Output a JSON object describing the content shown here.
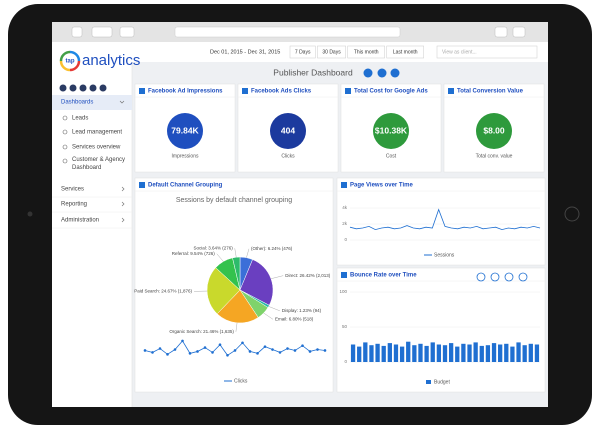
{
  "toolbar": {
    "date_range": "Dec 01, 2015 - Dec 31, 2015",
    "ranges": [
      "7 Days",
      "30 Days",
      "This month",
      "Last month"
    ],
    "search_placeholder": "View as client..."
  },
  "sidebar": {
    "logo_badge": "tap",
    "logo": "analytics",
    "nav": [
      "Dashboards",
      "Leads",
      "Lead management",
      "Services overview",
      "Customer & Agency Dashboard",
      "Services",
      "Reporting",
      "Administration"
    ]
  },
  "page_title": "Publisher Dashboard",
  "kpis": [
    {
      "title": "Facebook Ad Impressions",
      "value": "79.84K",
      "caption": "Impressions",
      "color": "#1f4fbf"
    },
    {
      "title": "Facebook Ads Clicks",
      "value": "404",
      "caption": "Clicks",
      "color": "#1c3a9e"
    },
    {
      "title": "Total Cost for Google Ads",
      "value": "$10.38K",
      "caption": "Cost",
      "color": "#2e9a3c"
    },
    {
      "title": "Total Conversion Value",
      "value": "$8.00",
      "caption": "Total conv. value",
      "color": "#2e9a3c"
    }
  ],
  "channel_widget": {
    "title": "Default Channel Grouping",
    "subtitle": "Sessions by default channel grouping",
    "pie": {
      "type": "pie",
      "categories": [
        "(Other)",
        "Direct",
        "Display",
        "Email",
        "Organic Search",
        "Paid Search",
        "Referral",
        "Social"
      ],
      "values": [
        6.24,
        26.42,
        1.23,
        6.8,
        21.46,
        24.67,
        9.54,
        3.64
      ],
      "value_labels": [
        "(Other): 6.24% (476)",
        "Direct: 26.42% (2,013)",
        "Display: 1.23% (94)",
        "Email: 6.80% (518)",
        "Organic Search: 21.46% (1,635)",
        "Paid Search: 24.67% (1,876)",
        "Referral: 9.54% (726)",
        "Social: 3.64% (276)"
      ],
      "colors": [
        "#3b6fd8",
        "#6a3fc0",
        "#26b5a8",
        "#7fd36b",
        "#f5a623",
        "#c9d92c",
        "#33c24d",
        "#2dbb6b"
      ]
    },
    "line": {
      "type": "line",
      "series": [
        {
          "name": "Clicks",
          "color": "#1f6fd1",
          "values": [
            12,
            10,
            14,
            8,
            13,
            22,
            9,
            11,
            15,
            10,
            18,
            7,
            12,
            20,
            11,
            9,
            16,
            13,
            10,
            14,
            12,
            17,
            11,
            13,
            12
          ]
        }
      ],
      "ylim": [
        0,
        25
      ]
    }
  },
  "pageviews_widget": {
    "title": "Page Views over Time",
    "chart": {
      "type": "line",
      "series": [
        {
          "name": "Sessions",
          "color": "#1f6fd1",
          "values": [
            1600,
            1400,
            1500,
            1700,
            1300,
            1500,
            1600,
            1400,
            1500,
            1800,
            1500,
            1400,
            1600,
            1500,
            3800,
            1700,
            1500,
            1400,
            1600,
            1500,
            1700,
            1400,
            1500,
            1600,
            1300,
            1500,
            1400,
            1600,
            1500,
            1700,
            1500
          ]
        }
      ],
      "ylim": [
        0,
        5000
      ],
      "yticks": [
        0,
        {
          "value": 2000,
          "label": "2k"
        },
        {
          "value": 4000,
          "label": "4k"
        }
      ],
      "grid": true
    }
  },
  "bounce_widget": {
    "title": "Bounce Rate over Time",
    "chart": {
      "type": "bar",
      "series": [
        {
          "name": "Budget",
          "color": "#1f6fd1",
          "values": [
            25,
            22,
            28,
            24,
            26,
            23,
            27,
            25,
            22,
            29,
            24,
            26,
            23,
            28,
            25,
            24,
            27,
            22,
            26,
            25,
            28,
            23,
            24,
            27,
            25,
            26,
            22,
            28,
            24,
            26,
            25
          ]
        }
      ],
      "ylim": [
        0,
        100
      ],
      "yticks": [
        0,
        50,
        100
      ],
      "grid": true
    }
  }
}
